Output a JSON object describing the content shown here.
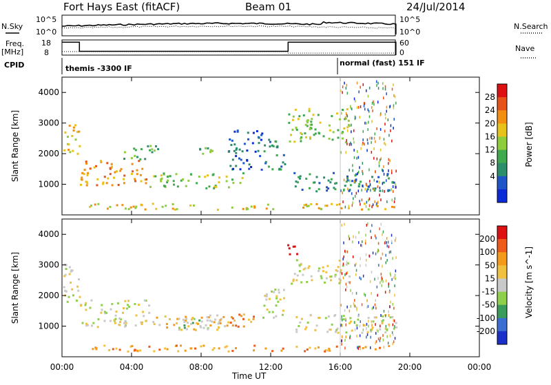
{
  "header": {
    "title": "Fort Hays East (fitACF)",
    "beam": "Beam 01",
    "date": "24/Jul/2014"
  },
  "labels": {
    "nsky": "N.Sky",
    "nsearch": "N.Search",
    "freq": "Freq.",
    "freq_unit": "[MHz]",
    "nave": "Nave",
    "cpid": "CPID",
    "log_hi": "10^5",
    "log_lo": "10^0"
  },
  "cpid_segments": [
    {
      "label": "themis -3300 IF",
      "start_hour": 0
    },
    {
      "label": "normal (fast) 151 IF",
      "start_hour": 16
    }
  ],
  "chart_data": [
    {
      "type": "line",
      "name": "noise-panel",
      "left_axis_ticks": [
        "10^5",
        "10^0"
      ],
      "right_axis_ticks": [
        "10^5",
        "10^0"
      ],
      "series": [
        {
          "name": "N.Sky",
          "style": "solid"
        },
        {
          "name": "N.Search",
          "style": "dotted"
        }
      ],
      "data_end_hour": 19.2
    },
    {
      "type": "line",
      "name": "freq-nave-panel",
      "left_ticks": [
        18,
        8
      ],
      "right_ticks": [
        60,
        0
      ],
      "series": [
        {
          "name": "Freq.",
          "style": "solid",
          "segments": [
            {
              "x0": 0,
              "x1": 1,
              "y": 16.5
            },
            {
              "x0": 1,
              "x1": 13,
              "y": 10.5
            },
            {
              "x0": 13,
              "x1": 19.2,
              "y": 16.5
            }
          ]
        },
        {
          "name": "Nave",
          "style": "dotted",
          "segments": [
            {
              "x0": 0,
              "x1": 13,
              "y": 10.3
            },
            {
              "x0": 13,
              "x1": 19.2,
              "y": 9.3
            }
          ]
        }
      ]
    },
    {
      "type": "heatmap",
      "name": "power-panel",
      "xlabel": "",
      "ylabel": "Slant Range [km]",
      "xlim": [
        0,
        24
      ],
      "ylim": [
        0,
        4500
      ],
      "y_ticks": [
        1000,
        2000,
        3000,
        4000
      ],
      "colorbar": {
        "label": "Power [dB]",
        "ticks": [
          4,
          8,
          12,
          16,
          20,
          24,
          28
        ],
        "colors": [
          "#0b2bd9",
          "#1e55c8",
          "#2b8f6a",
          "#3fa94e",
          "#8fcc3a",
          "#e6c21a",
          "#f28f10",
          "#e8531a",
          "#dd1111"
        ]
      },
      "regions": [
        {
          "x0": 0.0,
          "x1": 1.0,
          "y0": 2000,
          "y1": 3000,
          "level": 5
        },
        {
          "x0": 1.0,
          "x1": 5.0,
          "y0": 1000,
          "y1": 1800,
          "level": 6
        },
        {
          "x0": 3.5,
          "x1": 5.5,
          "y0": 1800,
          "y1": 2300,
          "level": 3
        },
        {
          "x0": 5.0,
          "x1": 10.5,
          "y0": 900,
          "y1": 1400,
          "level": 4
        },
        {
          "x0": 7.3,
          "x1": 8.7,
          "y0": 2000,
          "y1": 2300,
          "level": 3
        },
        {
          "x0": 9.5,
          "x1": 11.5,
          "y0": 1500,
          "y1": 2800,
          "level": 1
        },
        {
          "x0": 1.5,
          "x1": 19.2,
          "y0": 200,
          "y1": 400,
          "level": 5
        },
        {
          "x0": 11.5,
          "x1": 12.8,
          "y0": 1500,
          "y1": 2500,
          "level": 2
        },
        {
          "x0": 13.0,
          "x1": 16.5,
          "y0": 2400,
          "y1": 3500,
          "level": 4
        },
        {
          "x0": 13.2,
          "x1": 19.2,
          "y0": 800,
          "y1": 1400,
          "level": 2
        },
        {
          "x0": 16.0,
          "x1": 19.2,
          "y0": 300,
          "y1": 4400,
          "level": 0
        }
      ]
    },
    {
      "type": "heatmap",
      "name": "velocity-panel",
      "xlabel": "Time UT",
      "ylabel": "Slant Range [km]",
      "xlim": [
        0,
        24
      ],
      "ylim": [
        0,
        4500
      ],
      "x_ticks": [
        "00:00",
        "04:00",
        "08:00",
        "12:00",
        "16:00",
        "20:00",
        "00:00"
      ],
      "y_ticks": [
        1000,
        2000,
        3000,
        4000
      ],
      "colorbar": {
        "label": "Velocity [m s^-1]",
        "ticks": [
          200,
          100,
          50,
          15,
          -15,
          -50,
          -100,
          -200
        ],
        "colors": [
          "#1a30c9",
          "#3a6ed0",
          "#3a9c5a",
          "#8ed04a",
          "#c9c9c9",
          "#f0c040",
          "#f39a1a",
          "#ee5a1a",
          "#dd1111"
        ]
      },
      "regions": [
        {
          "x0": 0.0,
          "x1": 1.0,
          "y0": 1800,
          "y1": 3100,
          "level": 4
        },
        {
          "x0": 1.0,
          "x1": 5.0,
          "y0": 1000,
          "y1": 1900,
          "level": 4
        },
        {
          "x0": 5.0,
          "x1": 10.5,
          "y0": 900,
          "y1": 1400,
          "level": 5
        },
        {
          "x0": 6.5,
          "x1": 8.5,
          "y0": 900,
          "y1": 1400,
          "level": 3
        },
        {
          "x0": 9.5,
          "x1": 11.0,
          "y0": 1000,
          "y1": 1500,
          "level": 6
        },
        {
          "x0": 1.5,
          "x1": 19.2,
          "y0": 200,
          "y1": 400,
          "level": 6
        },
        {
          "x0": 12.8,
          "x1": 13.6,
          "y0": 3300,
          "y1": 3700,
          "level": 8
        },
        {
          "x0": 13.0,
          "x1": 16.5,
          "y0": 2400,
          "y1": 3200,
          "level": 4
        },
        {
          "x0": 13.2,
          "x1": 19.2,
          "y0": 800,
          "y1": 1400,
          "level": 4
        },
        {
          "x0": 11.5,
          "x1": 12.8,
          "y0": 1300,
          "y1": 2400,
          "level": 4
        },
        {
          "x0": 16.0,
          "x1": 19.2,
          "y0": 300,
          "y1": 4400,
          "level": 0
        }
      ]
    }
  ]
}
